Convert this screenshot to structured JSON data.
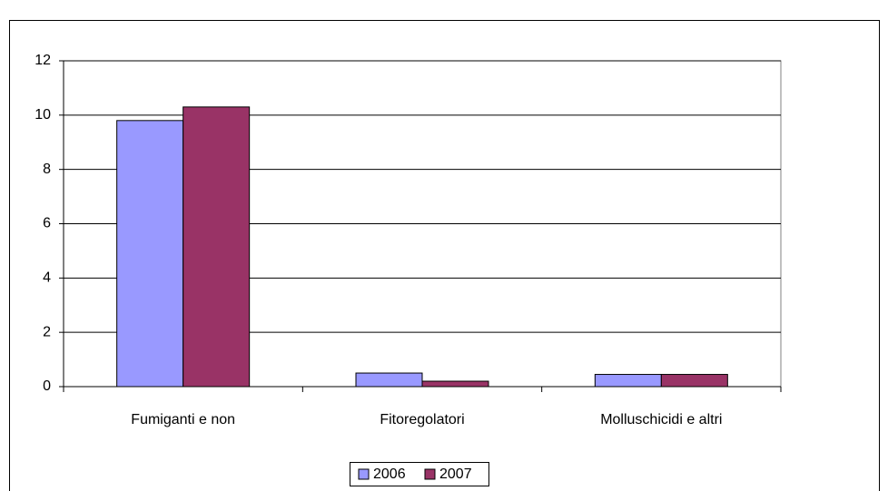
{
  "chart_data": {
    "type": "bar",
    "categories": [
      "Fumiganti e non",
      "Fitoregolatori",
      "Molluschicidi e altri"
    ],
    "series": [
      {
        "name": "2006",
        "color": "#9999ff",
        "values": [
          9.8,
          0.5,
          0.45
        ]
      },
      {
        "name": "2007",
        "color": "#993366",
        "values": [
          10.3,
          0.2,
          0.45
        ]
      }
    ],
    "ylim": [
      0,
      12
    ],
    "yticks": [
      0,
      2,
      4,
      6,
      8,
      10,
      12
    ],
    "grid": true,
    "legend": "bottom"
  }
}
